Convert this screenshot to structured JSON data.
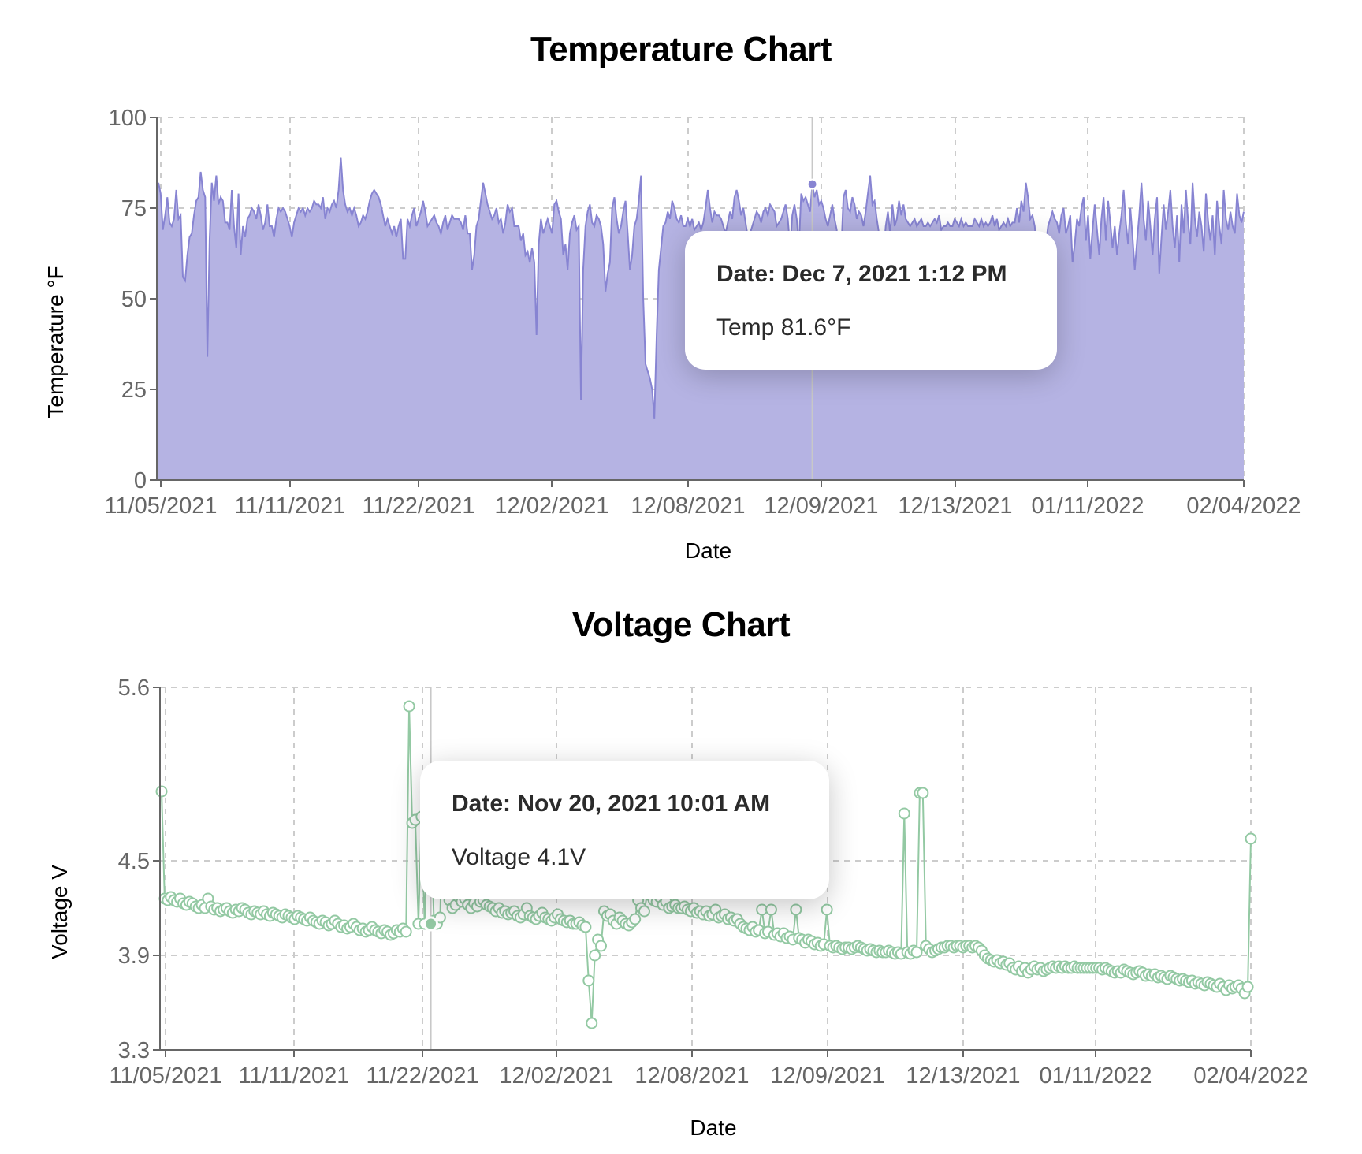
{
  "temperature_chart": {
    "title": "Temperature Chart",
    "ylabel": "Temperature °F",
    "xlabel": "Date",
    "tooltip": {
      "date": "Date: Dec 7, 2021 1:12 PM",
      "value": "Temp 81.6°F"
    },
    "colors": {
      "fill": "#b5b3e3",
      "stroke": "#8784d2",
      "grid": "#cccccc",
      "axis": "#666666"
    }
  },
  "voltage_chart": {
    "title": "Voltage Chart",
    "ylabel": "Voltage V",
    "xlabel": "Date",
    "tooltip": {
      "date": "Date: Nov 20, 2021 10:01 AM",
      "value": "Voltage 4.1V"
    },
    "colors": {
      "stroke": "#93c9a3",
      "dot_fill": "#ffffff",
      "grid": "#cccccc",
      "axis": "#666666"
    }
  },
  "chart_data": [
    {
      "type": "area",
      "title": "Temperature Chart",
      "xlabel": "Date",
      "ylabel": "Temperature °F",
      "ylim": [
        0,
        100
      ],
      "yticks": [
        0,
        25,
        50,
        75,
        100
      ],
      "xticks": [
        "11/05/2021",
        "11/11/2021",
        "11/22/2021",
        "12/02/2021",
        "12/08/2021",
        "12/09/2021",
        "12/13/2021",
        "01/11/2022",
        "02/04/2022"
      ],
      "grid": true,
      "legend": "none",
      "active_point": {
        "date": "Dec 7, 2021 1:12 PM",
        "value": 81.6
      },
      "series": [
        {
          "name": "Temp",
          "values": [
            82,
            79,
            69,
            73,
            78,
            71,
            70,
            72,
            80,
            72,
            73,
            56,
            55,
            62,
            67,
            68,
            73,
            77,
            78,
            85,
            80,
            78,
            34,
            66,
            82,
            77,
            84,
            76,
            78,
            77,
            71,
            71,
            69,
            80,
            70,
            64,
            79,
            62,
            70,
            67,
            72,
            73,
            75,
            74,
            72,
            76,
            73,
            69,
            71,
            76,
            70,
            70,
            67,
            72,
            75,
            74,
            75,
            74,
            72,
            70,
            67,
            71,
            73,
            75,
            74,
            75,
            73,
            75,
            74,
            75,
            77,
            76,
            76,
            75,
            78,
            72,
            75,
            74,
            76,
            77,
            75,
            80,
            89,
            80,
            76,
            74,
            75,
            73,
            75,
            73,
            70,
            71,
            73,
            72,
            74,
            77,
            79,
            80,
            79,
            78,
            76,
            73,
            70,
            72,
            70,
            68,
            70,
            67,
            70,
            72,
            61,
            61,
            72,
            70,
            73,
            75,
            70,
            72,
            74,
            77,
            74,
            70,
            71,
            72,
            73,
            71,
            70,
            68,
            71,
            73,
            69,
            71,
            73,
            72,
            72,
            72,
            71,
            69,
            73,
            68,
            68,
            58,
            62,
            70,
            72,
            77,
            82,
            79,
            76,
            74,
            72,
            73,
            75,
            71,
            72,
            68,
            71,
            76,
            74,
            75,
            70,
            70,
            70,
            66,
            68,
            62,
            63,
            60,
            64,
            60,
            40,
            65,
            72,
            68,
            70,
            72,
            70,
            68,
            76,
            77,
            74,
            72,
            62,
            65,
            58,
            68,
            71,
            73,
            69,
            70,
            22,
            58,
            70,
            74,
            76,
            71,
            70,
            73,
            72,
            70,
            65,
            52,
            57,
            60,
            75,
            78,
            72,
            68,
            70,
            74,
            77,
            68,
            58,
            62,
            70,
            72,
            77,
            84,
            50,
            32,
            30,
            28,
            25,
            17,
            40,
            58,
            64,
            70,
            71,
            74,
            72,
            77,
            75,
            72,
            71,
            73,
            70,
            70,
            72,
            70,
            72,
            69,
            70,
            71,
            69,
            71,
            75,
            80,
            75,
            71,
            74,
            73,
            73,
            72,
            70,
            68,
            71,
            74,
            72,
            78,
            80,
            77,
            73,
            75,
            71,
            67,
            68,
            70,
            72,
            74,
            73,
            71,
            74,
            75,
            73,
            76,
            75,
            74,
            70,
            71,
            72,
            74,
            76,
            72,
            64,
            73,
            76,
            72,
            65,
            79,
            77,
            78,
            76,
            74,
            81.6,
            78,
            80,
            76,
            77,
            75,
            72,
            70,
            73,
            76,
            72,
            69,
            60,
            63,
            78,
            80,
            75,
            74,
            78,
            76,
            72,
            74,
            73,
            70,
            74,
            79,
            84,
            76,
            77,
            72,
            68,
            60,
            62,
            70,
            74,
            68,
            76,
            70,
            72,
            77,
            73,
            76,
            72,
            71,
            70,
            71,
            72,
            70,
            71,
            72,
            70,
            70,
            71,
            70,
            71,
            72,
            71,
            73,
            69,
            70,
            70,
            71,
            70,
            70,
            72,
            71,
            70,
            72,
            70,
            71,
            70,
            70,
            70,
            72,
            71,
            70,
            72,
            70,
            71,
            70,
            71,
            73,
            70,
            72,
            69,
            70,
            71,
            70,
            72,
            70,
            71,
            71,
            75,
            71,
            77,
            74,
            82,
            78,
            72,
            73,
            70,
            62,
            60,
            61,
            60,
            65,
            70,
            72,
            74,
            72,
            71,
            68,
            73,
            75,
            68,
            70,
            73,
            60,
            65,
            72,
            70,
            75,
            78,
            66,
            73,
            61,
            69,
            76,
            69,
            62,
            72,
            78,
            66,
            77,
            71,
            64,
            70,
            62,
            68,
            73,
            80,
            71,
            65,
            75,
            67,
            58,
            66,
            73,
            82,
            72,
            66,
            77,
            70,
            62,
            72,
            78,
            57,
            67,
            76,
            69,
            74,
            80,
            70,
            64,
            73,
            60,
            76,
            68,
            80,
            71,
            65,
            82,
            72,
            67,
            74,
            70,
            63,
            79,
            71,
            66,
            73,
            62,
            77,
            70,
            65,
            80,
            72,
            69,
            74,
            70,
            68,
            79,
            73,
            71,
            74
          ]
        }
      ]
    },
    {
      "type": "line",
      "title": "Voltage Chart",
      "xlabel": "Date",
      "ylabel": "Voltage V",
      "ylim": [
        3.3,
        5.6
      ],
      "yticks": [
        3.3,
        3.9,
        4.5,
        5.6
      ],
      "xticks": [
        "11/05/2021",
        "11/11/2021",
        "11/22/2021",
        "12/02/2021",
        "12/08/2021",
        "12/09/2021",
        "12/13/2021",
        "01/11/2022",
        "02/04/2022"
      ],
      "grid": true,
      "legend": "none",
      "markers": "hollow-circle",
      "active_point": {
        "date": "Nov 20, 2021 10:01 AM",
        "value": 4.1
      },
      "series": [
        {
          "name": "Voltage",
          "values": [
            4.94,
            4.26,
            4.25,
            4.27,
            4.25,
            4.24,
            4.26,
            4.23,
            4.22,
            4.24,
            4.23,
            4.21,
            4.2,
            4.22,
            4.2,
            4.26,
            4.21,
            4.19,
            4.2,
            4.18,
            4.19,
            4.2,
            4.18,
            4.17,
            4.19,
            4.18,
            4.2,
            4.19,
            4.17,
            4.16,
            4.18,
            4.17,
            4.16,
            4.18,
            4.16,
            4.15,
            4.17,
            4.16,
            4.15,
            4.14,
            4.16,
            4.15,
            4.14,
            4.13,
            4.15,
            4.14,
            4.13,
            4.12,
            4.14,
            4.12,
            4.11,
            4.1,
            4.12,
            4.11,
            4.09,
            4.1,
            4.12,
            4.1,
            4.08,
            4.09,
            4.07,
            4.08,
            4.1,
            4.08,
            4.06,
            4.07,
            4.05,
            4.06,
            4.08,
            4.06,
            4.05,
            4.04,
            4.06,
            4.05,
            4.03,
            4.04,
            4.06,
            4.05,
            4.07,
            4.05,
            5.48,
            4.74,
            4.76,
            4.1,
            4.78,
            4.1,
            4.75,
            4.8,
            4.12,
            4.1,
            4.14,
            4.9,
            4.92,
            4.25,
            4.2,
            4.22,
            4.27,
            4.24,
            4.26,
            4.22,
            4.2,
            4.23,
            4.21,
            4.24,
            4.25,
            4.22,
            4.21,
            4.2,
            4.18,
            4.2,
            4.17,
            4.18,
            4.16,
            4.17,
            4.18,
            4.15,
            4.14,
            4.16,
            4.2,
            4.15,
            4.14,
            4.13,
            4.15,
            4.17,
            4.14,
            4.13,
            4.12,
            4.14,
            4.16,
            4.13,
            4.12,
            4.11,
            4.12,
            4.1,
            4.1,
            4.11,
            4.09,
            4.08,
            3.74,
            3.47,
            3.9,
            4.0,
            3.96,
            4.18,
            4.15,
            4.16,
            4.12,
            4.1,
            4.14,
            4.12,
            4.1,
            4.09,
            4.11,
            4.13,
            4.25,
            4.2,
            4.18,
            4.3,
            4.28,
            4.25,
            4.24,
            4.27,
            4.22,
            4.24,
            4.2,
            4.21,
            4.22,
            4.2,
            4.2,
            4.21,
            4.19,
            4.18,
            4.2,
            4.17,
            4.18,
            4.16,
            4.18,
            4.15,
            4.16,
            4.19,
            4.14,
            4.15,
            4.16,
            4.13,
            4.14,
            4.12,
            4.13,
            4.1,
            4.08,
            4.07,
            4.06,
            4.08,
            4.05,
            4.06,
            4.19,
            4.04,
            4.05,
            4.19,
            4.03,
            4.04,
            4.02,
            4.04,
            4.01,
            4.02,
            4.0,
            4.19,
            4.01,
            4.0,
            3.98,
            4.0,
            3.99,
            3.97,
            3.98,
            3.96,
            3.97,
            4.19,
            3.96,
            3.95,
            3.96,
            3.95,
            3.94,
            3.95,
            3.95,
            3.94,
            3.95,
            3.96,
            3.95,
            3.94,
            3.93,
            3.94,
            3.93,
            3.92,
            3.93,
            3.92,
            3.92,
            3.93,
            3.92,
            3.91,
            3.92,
            3.91,
            4.8,
            3.92,
            3.91,
            3.93,
            3.92,
            4.93,
            4.93,
            3.96,
            3.94,
            3.92,
            3.93,
            3.94,
            3.95,
            3.95,
            3.96,
            3.96,
            3.95,
            3.96,
            3.96,
            3.95,
            3.96,
            3.96,
            3.95,
            3.96,
            3.95,
            3.93,
            3.9,
            3.88,
            3.87,
            3.86,
            3.87,
            3.85,
            3.86,
            3.84,
            3.85,
            3.82,
            3.81,
            3.83,
            3.8,
            3.82,
            3.79,
            3.81,
            3.83,
            3.81,
            3.82,
            3.8,
            3.81,
            3.82,
            3.83,
            3.82,
            3.83,
            3.82,
            3.83,
            3.82,
            3.82,
            3.83,
            3.82,
            3.82,
            3.82,
            3.82,
            3.82,
            3.82,
            3.82,
            3.82,
            3.81,
            3.82,
            3.81,
            3.8,
            3.79,
            3.8,
            3.79,
            3.81,
            3.8,
            3.79,
            3.78,
            3.79,
            3.8,
            3.79,
            3.77,
            3.78,
            3.77,
            3.78,
            3.76,
            3.77,
            3.76,
            3.75,
            3.77,
            3.76,
            3.75,
            3.74,
            3.75,
            3.74,
            3.73,
            3.74,
            3.72,
            3.73,
            3.72,
            3.71,
            3.73,
            3.72,
            3.71,
            3.7,
            3.72,
            3.7,
            3.68,
            3.71,
            3.69,
            3.7,
            3.71,
            3.69,
            3.66,
            3.7,
            4.64
          ]
        }
      ]
    }
  ]
}
